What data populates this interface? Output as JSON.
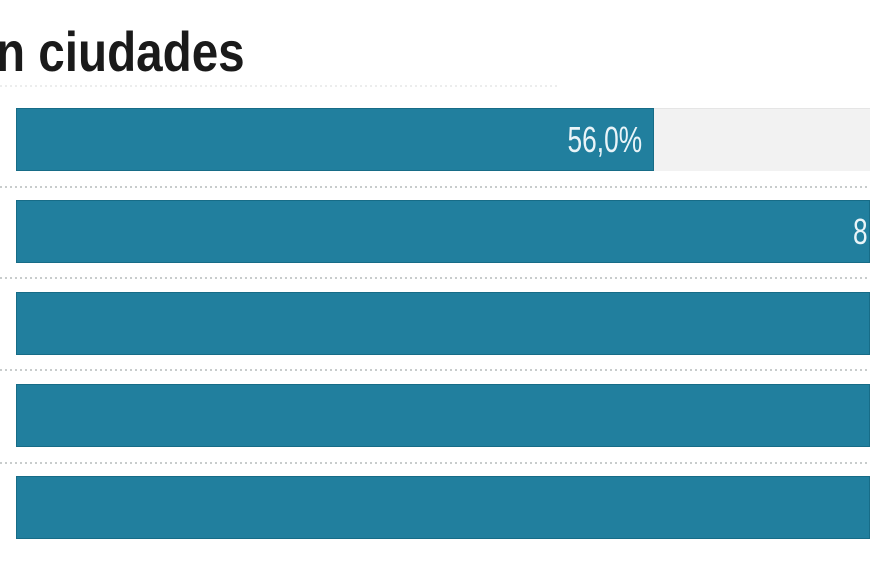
{
  "chart_data": {
    "type": "bar",
    "orientation": "horizontal",
    "title": "n ciudades",
    "bar_color": "#217f9e",
    "track_color": "#f2f2f2",
    "value_label_color": "#e9f4f8",
    "separator_style": "dotted",
    "separator_color": "#c8cccc",
    "xlim_pct": [
      0,
      100
    ],
    "bars": [
      {
        "value": 56.0,
        "value_label": "56,0%",
        "width_pct": 74.7
      },
      {
        "value_label": "8",
        "width_pct": 100
      },
      {
        "value_label": "",
        "width_pct": 100
      },
      {
        "value_label": "",
        "width_pct": 100
      },
      {
        "value_label": "",
        "width_pct": 100
      }
    ]
  }
}
